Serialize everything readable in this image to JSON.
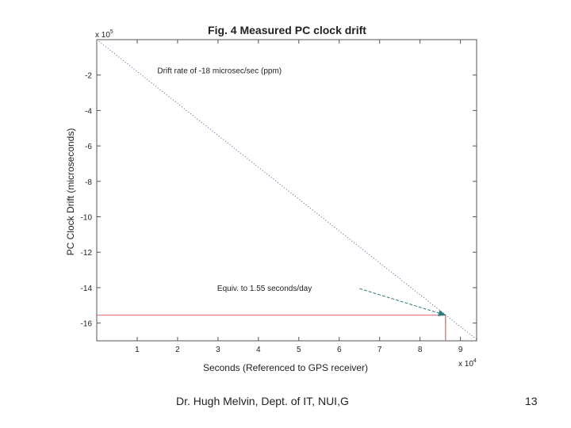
{
  "chart_data": {
    "type": "line",
    "title": "Fig. 4 Measured PC clock drift",
    "xlabel": "Seconds  (Referenced to GPS receiver)",
    "ylabel": "PC Clock Drift (microseconds)",
    "x_multiplier": "x 10",
    "x_exponent": "4",
    "y_multiplier": "x 10",
    "y_exponent": "5",
    "xlim": [
      0,
      9.4
    ],
    "ylim": [
      -17,
      0
    ],
    "xticks": [
      1,
      2,
      3,
      4,
      5,
      6,
      7,
      8,
      9
    ],
    "yticks": [
      -2,
      -4,
      -6,
      -8,
      -10,
      -12,
      -14,
      -16
    ],
    "series": [
      {
        "name": "Drift rate of -18 microsec/sec (ppm)",
        "style": "dotted",
        "color": "#5a6aa0",
        "x": [
          0,
          9.4
        ],
        "y": [
          0,
          -16.92
        ]
      }
    ],
    "reference_lines": {
      "horizontal_y": -15.55,
      "vertical_x": 8.63,
      "color": "#e06b6b"
    },
    "annotations": [
      {
        "text": "Drift rate of -18 microsec/sec (ppm)",
        "x": 1.5,
        "y": -1.9
      },
      {
        "text": "Equiv. to 1.55 seconds/day",
        "x": 2.0,
        "y": -14.0,
        "arrow_from": [
          6.5,
          -14.05
        ],
        "arrow_to": [
          8.63,
          -15.55
        ],
        "arrow_color": "#2e7d7d"
      }
    ]
  },
  "footer": {
    "left": "Dr. Hugh Melvin, Dept. of IT, NUI,G",
    "right": "13"
  }
}
